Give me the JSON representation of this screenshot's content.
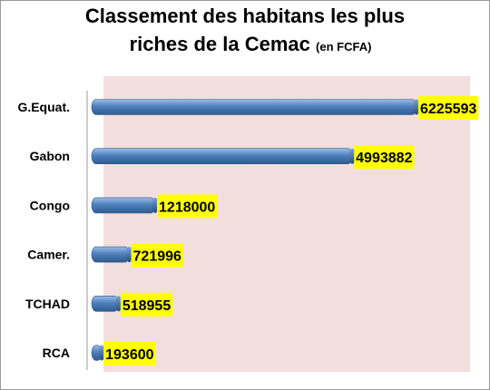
{
  "chart_data": {
    "type": "bar",
    "orientation": "horizontal",
    "title_line1": "Classement des habitans les plus",
    "title_line2": "riches de la Cemac",
    "title_unit": "(en FCFA)",
    "categories": [
      "G.Equat.",
      "Gabon",
      "Congo",
      "Camer.",
      "TCHAD",
      "RCA"
    ],
    "values": [
      6225593,
      4993882,
      1218000,
      721996,
      518955,
      193600
    ],
    "xlim": [
      0,
      7000000
    ],
    "grid": false,
    "legend": "none",
    "colors": {
      "bar": "#4f81bd",
      "bar_dark": "#2f5a8f",
      "bar_light": "#9dbde6",
      "plot_bg": "#f3dede",
      "label_bg": "#ffff00"
    }
  }
}
